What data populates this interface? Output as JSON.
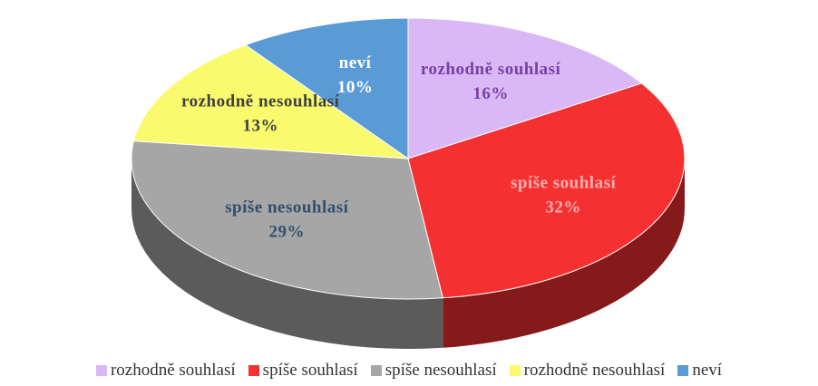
{
  "chart_data": {
    "type": "pie3d",
    "categories": [
      "rozhodně souhlasí",
      "spíše souhlasí",
      "spíše nesouhlasí",
      "rozhodně nesouhlasí",
      "neví"
    ],
    "values": [
      16,
      32,
      29,
      13,
      10
    ],
    "value_labels": [
      "16%",
      "32%",
      "29%",
      "13%",
      "10%"
    ],
    "colors": [
      "#d9b8f5",
      "#f53030",
      "#a6a6a6",
      "#fafa6e",
      "#5b9bd5"
    ],
    "label_colors": [
      "#7a3fa6",
      "#ffb0b0",
      "#2f4f6f",
      "#404040",
      "#ffffff"
    ],
    "legend": "bottom"
  }
}
